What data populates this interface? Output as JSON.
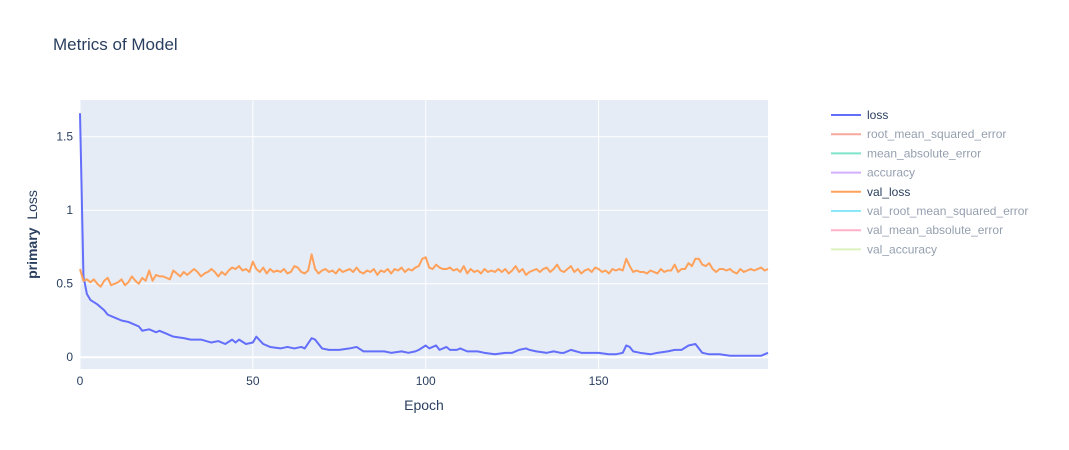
{
  "chart_data": {
    "type": "line",
    "title": "Metrics of Model",
    "xlabel": "Epoch",
    "ylabel_bold": "primary",
    "ylabel_rest": "Loss",
    "xlim": [
      0,
      199
    ],
    "ylim": [
      -0.08,
      1.75
    ],
    "x_ticks": [
      0,
      50,
      100,
      150
    ],
    "x_tick_labels": [
      "0",
      "50",
      "100",
      "150"
    ],
    "y_ticks": [
      0,
      0.5,
      1,
      1.5
    ],
    "y_tick_labels": [
      "0",
      "0.5",
      "1",
      "1.5"
    ],
    "grid": true,
    "legend_position": "right",
    "plot_bgcolor": "#e5ecf6",
    "series": [
      {
        "name": "loss",
        "color": "#636efa",
        "visible": true,
        "key_points": [
          [
            0,
            1.66
          ],
          [
            1,
            0.55
          ],
          [
            2,
            0.43
          ],
          [
            3,
            0.39
          ],
          [
            5,
            0.36
          ],
          [
            7,
            0.32
          ],
          [
            8,
            0.29
          ],
          [
            10,
            0.27
          ],
          [
            12,
            0.25
          ],
          [
            14,
            0.24
          ],
          [
            16,
            0.22
          ],
          [
            17,
            0.21
          ],
          [
            18,
            0.18
          ],
          [
            20,
            0.19
          ],
          [
            22,
            0.17
          ],
          [
            23,
            0.18
          ],
          [
            25,
            0.16
          ],
          [
            27,
            0.14
          ],
          [
            30,
            0.13
          ],
          [
            32,
            0.12
          ],
          [
            35,
            0.12
          ],
          [
            38,
            0.1
          ],
          [
            40,
            0.11
          ],
          [
            42,
            0.09
          ],
          [
            44,
            0.12
          ],
          [
            45,
            0.1
          ],
          [
            46,
            0.12
          ],
          [
            48,
            0.09
          ],
          [
            50,
            0.1
          ],
          [
            51,
            0.14
          ],
          [
            53,
            0.09
          ],
          [
            55,
            0.07
          ],
          [
            58,
            0.06
          ],
          [
            60,
            0.07
          ],
          [
            62,
            0.06
          ],
          [
            64,
            0.07
          ],
          [
            65,
            0.06
          ],
          [
            67,
            0.13
          ],
          [
            68,
            0.12
          ],
          [
            70,
            0.06
          ],
          [
            72,
            0.05
          ],
          [
            75,
            0.05
          ],
          [
            78,
            0.06
          ],
          [
            80,
            0.07
          ],
          [
            82,
            0.04
          ],
          [
            85,
            0.04
          ],
          [
            88,
            0.04
          ],
          [
            90,
            0.03
          ],
          [
            93,
            0.04
          ],
          [
            95,
            0.03
          ],
          [
            97,
            0.04
          ],
          [
            98,
            0.05
          ],
          [
            100,
            0.08
          ],
          [
            101,
            0.06
          ],
          [
            102,
            0.07
          ],
          [
            103,
            0.08
          ],
          [
            104,
            0.05
          ],
          [
            106,
            0.07
          ],
          [
            107,
            0.05
          ],
          [
            109,
            0.05
          ],
          [
            110,
            0.06
          ],
          [
            112,
            0.04
          ],
          [
            115,
            0.04
          ],
          [
            117,
            0.03
          ],
          [
            120,
            0.02
          ],
          [
            123,
            0.03
          ],
          [
            125,
            0.03
          ],
          [
            127,
            0.05
          ],
          [
            129,
            0.06
          ],
          [
            130,
            0.05
          ],
          [
            132,
            0.04
          ],
          [
            135,
            0.03
          ],
          [
            137,
            0.04
          ],
          [
            139,
            0.03
          ],
          [
            140,
            0.03
          ],
          [
            142,
            0.05
          ],
          [
            145,
            0.03
          ],
          [
            148,
            0.03
          ],
          [
            150,
            0.03
          ],
          [
            153,
            0.02
          ],
          [
            155,
            0.02
          ],
          [
            157,
            0.03
          ],
          [
            158,
            0.08
          ],
          [
            159,
            0.07
          ],
          [
            160,
            0.04
          ],
          [
            162,
            0.03
          ],
          [
            165,
            0.02
          ],
          [
            167,
            0.03
          ],
          [
            170,
            0.04
          ],
          [
            172,
            0.05
          ],
          [
            174,
            0.05
          ],
          [
            176,
            0.08
          ],
          [
            178,
            0.09
          ],
          [
            180,
            0.03
          ],
          [
            182,
            0.02
          ],
          [
            185,
            0.02
          ],
          [
            188,
            0.01
          ],
          [
            190,
            0.01
          ],
          [
            195,
            0.01
          ],
          [
            197,
            0.01
          ],
          [
            199,
            0.03
          ]
        ]
      },
      {
        "name": "root_mean_squared_error",
        "color": "#ef553b",
        "visible": false
      },
      {
        "name": "mean_absolute_error",
        "color": "#00cc96",
        "visible": false
      },
      {
        "name": "accuracy",
        "color": "#ab63fa",
        "visible": false
      },
      {
        "name": "val_loss",
        "color": "#ffa15a",
        "visible": true,
        "key_points": [
          [
            0,
            0.6
          ],
          [
            1,
            0.52
          ],
          [
            2,
            0.53
          ],
          [
            3,
            0.51
          ],
          [
            4,
            0.53
          ],
          [
            5,
            0.5
          ],
          [
            6,
            0.48
          ],
          [
            7,
            0.52
          ],
          [
            8,
            0.54
          ],
          [
            9,
            0.49
          ],
          [
            10,
            0.5
          ],
          [
            11,
            0.51
          ],
          [
            12,
            0.53
          ],
          [
            13,
            0.49
          ],
          [
            14,
            0.51
          ],
          [
            15,
            0.55
          ],
          [
            16,
            0.52
          ],
          [
            17,
            0.5
          ],
          [
            18,
            0.54
          ],
          [
            19,
            0.52
          ],
          [
            20,
            0.59
          ],
          [
            21,
            0.52
          ],
          [
            22,
            0.56
          ],
          [
            23,
            0.55
          ],
          [
            24,
            0.55
          ],
          [
            25,
            0.54
          ],
          [
            26,
            0.53
          ],
          [
            27,
            0.59
          ],
          [
            28,
            0.57
          ],
          [
            29,
            0.55
          ],
          [
            30,
            0.58
          ],
          [
            31,
            0.56
          ],
          [
            32,
            0.58
          ],
          [
            33,
            0.6
          ],
          [
            34,
            0.58
          ],
          [
            35,
            0.55
          ],
          [
            36,
            0.57
          ],
          [
            37,
            0.58
          ],
          [
            38,
            0.6
          ],
          [
            39,
            0.58
          ],
          [
            40,
            0.55
          ],
          [
            41,
            0.58
          ],
          [
            42,
            0.56
          ],
          [
            43,
            0.59
          ],
          [
            44,
            0.61
          ],
          [
            45,
            0.6
          ],
          [
            46,
            0.62
          ],
          [
            47,
            0.59
          ],
          [
            48,
            0.6
          ],
          [
            49,
            0.58
          ],
          [
            50,
            0.65
          ],
          [
            51,
            0.6
          ],
          [
            52,
            0.58
          ],
          [
            53,
            0.61
          ],
          [
            54,
            0.57
          ],
          [
            55,
            0.6
          ],
          [
            56,
            0.58
          ],
          [
            57,
            0.59
          ],
          [
            58,
            0.58
          ],
          [
            59,
            0.6
          ],
          [
            60,
            0.57
          ],
          [
            61,
            0.58
          ],
          [
            62,
            0.62
          ],
          [
            63,
            0.61
          ],
          [
            64,
            0.58
          ],
          [
            65,
            0.57
          ],
          [
            66,
            0.59
          ],
          [
            67,
            0.7
          ],
          [
            68,
            0.6
          ],
          [
            69,
            0.57
          ],
          [
            70,
            0.59
          ],
          [
            71,
            0.6
          ],
          [
            72,
            0.58
          ],
          [
            73,
            0.59
          ],
          [
            74,
            0.57
          ],
          [
            75,
            0.6
          ],
          [
            76,
            0.58
          ],
          [
            77,
            0.59
          ],
          [
            78,
            0.6
          ],
          [
            79,
            0.58
          ],
          [
            80,
            0.61
          ],
          [
            81,
            0.58
          ],
          [
            82,
            0.57
          ],
          [
            83,
            0.59
          ],
          [
            84,
            0.58
          ],
          [
            85,
            0.6
          ],
          [
            86,
            0.56
          ],
          [
            87,
            0.59
          ],
          [
            88,
            0.58
          ],
          [
            89,
            0.6
          ],
          [
            90,
            0.57
          ],
          [
            91,
            0.6
          ],
          [
            92,
            0.59
          ],
          [
            93,
            0.61
          ],
          [
            94,
            0.58
          ],
          [
            95,
            0.6
          ],
          [
            96,
            0.59
          ],
          [
            97,
            0.61
          ],
          [
            98,
            0.62
          ],
          [
            99,
            0.67
          ],
          [
            100,
            0.68
          ],
          [
            101,
            0.61
          ],
          [
            102,
            0.6
          ],
          [
            103,
            0.63
          ],
          [
            104,
            0.61
          ],
          [
            105,
            0.6
          ],
          [
            106,
            0.6
          ],
          [
            107,
            0.61
          ],
          [
            108,
            0.59
          ],
          [
            109,
            0.6
          ],
          [
            110,
            0.58
          ],
          [
            111,
            0.62
          ],
          [
            112,
            0.57
          ],
          [
            113,
            0.6
          ],
          [
            114,
            0.58
          ],
          [
            115,
            0.59
          ],
          [
            116,
            0.57
          ],
          [
            117,
            0.6
          ],
          [
            118,
            0.58
          ],
          [
            119,
            0.59
          ],
          [
            120,
            0.58
          ],
          [
            121,
            0.6
          ],
          [
            122,
            0.58
          ],
          [
            123,
            0.6
          ],
          [
            124,
            0.57
          ],
          [
            125,
            0.59
          ],
          [
            126,
            0.62
          ],
          [
            127,
            0.58
          ],
          [
            128,
            0.6
          ],
          [
            129,
            0.56
          ],
          [
            130,
            0.58
          ],
          [
            131,
            0.59
          ],
          [
            132,
            0.6
          ],
          [
            133,
            0.58
          ],
          [
            134,
            0.6
          ],
          [
            135,
            0.61
          ],
          [
            136,
            0.58
          ],
          [
            137,
            0.6
          ],
          [
            138,
            0.63
          ],
          [
            139,
            0.59
          ],
          [
            140,
            0.58
          ],
          [
            141,
            0.6
          ],
          [
            142,
            0.62
          ],
          [
            143,
            0.58
          ],
          [
            144,
            0.6
          ],
          [
            145,
            0.57
          ],
          [
            146,
            0.59
          ],
          [
            147,
            0.6
          ],
          [
            148,
            0.58
          ],
          [
            149,
            0.61
          ],
          [
            150,
            0.6
          ],
          [
            151,
            0.58
          ],
          [
            152,
            0.59
          ],
          [
            153,
            0.57
          ],
          [
            154,
            0.6
          ],
          [
            155,
            0.59
          ],
          [
            156,
            0.6
          ],
          [
            157,
            0.59
          ],
          [
            158,
            0.67
          ],
          [
            159,
            0.62
          ],
          [
            160,
            0.58
          ],
          [
            161,
            0.59
          ],
          [
            162,
            0.58
          ],
          [
            163,
            0.58
          ],
          [
            164,
            0.57
          ],
          [
            165,
            0.59
          ],
          [
            166,
            0.58
          ],
          [
            167,
            0.57
          ],
          [
            168,
            0.6
          ],
          [
            169,
            0.58
          ],
          [
            170,
            0.59
          ],
          [
            171,
            0.59
          ],
          [
            172,
            0.63
          ],
          [
            173,
            0.58
          ],
          [
            174,
            0.6
          ],
          [
            175,
            0.6
          ],
          [
            176,
            0.64
          ],
          [
            177,
            0.62
          ],
          [
            178,
            0.67
          ],
          [
            179,
            0.67
          ],
          [
            180,
            0.63
          ],
          [
            181,
            0.62
          ],
          [
            182,
            0.64
          ],
          [
            183,
            0.6
          ],
          [
            184,
            0.58
          ],
          [
            185,
            0.6
          ],
          [
            186,
            0.6
          ],
          [
            187,
            0.59
          ],
          [
            188,
            0.6
          ],
          [
            189,
            0.58
          ],
          [
            190,
            0.57
          ],
          [
            191,
            0.6
          ],
          [
            192,
            0.58
          ],
          [
            193,
            0.59
          ],
          [
            194,
            0.6
          ],
          [
            195,
            0.59
          ],
          [
            196,
            0.6
          ],
          [
            197,
            0.61
          ],
          [
            198,
            0.59
          ],
          [
            199,
            0.6
          ]
        ]
      },
      {
        "name": "val_root_mean_squared_error",
        "color": "#19d3f3",
        "visible": false
      },
      {
        "name": "val_mean_absolute_error",
        "color": "#ff6692",
        "visible": false
      },
      {
        "name": "val_accuracy",
        "color": "#b6e880",
        "visible": false
      }
    ]
  }
}
